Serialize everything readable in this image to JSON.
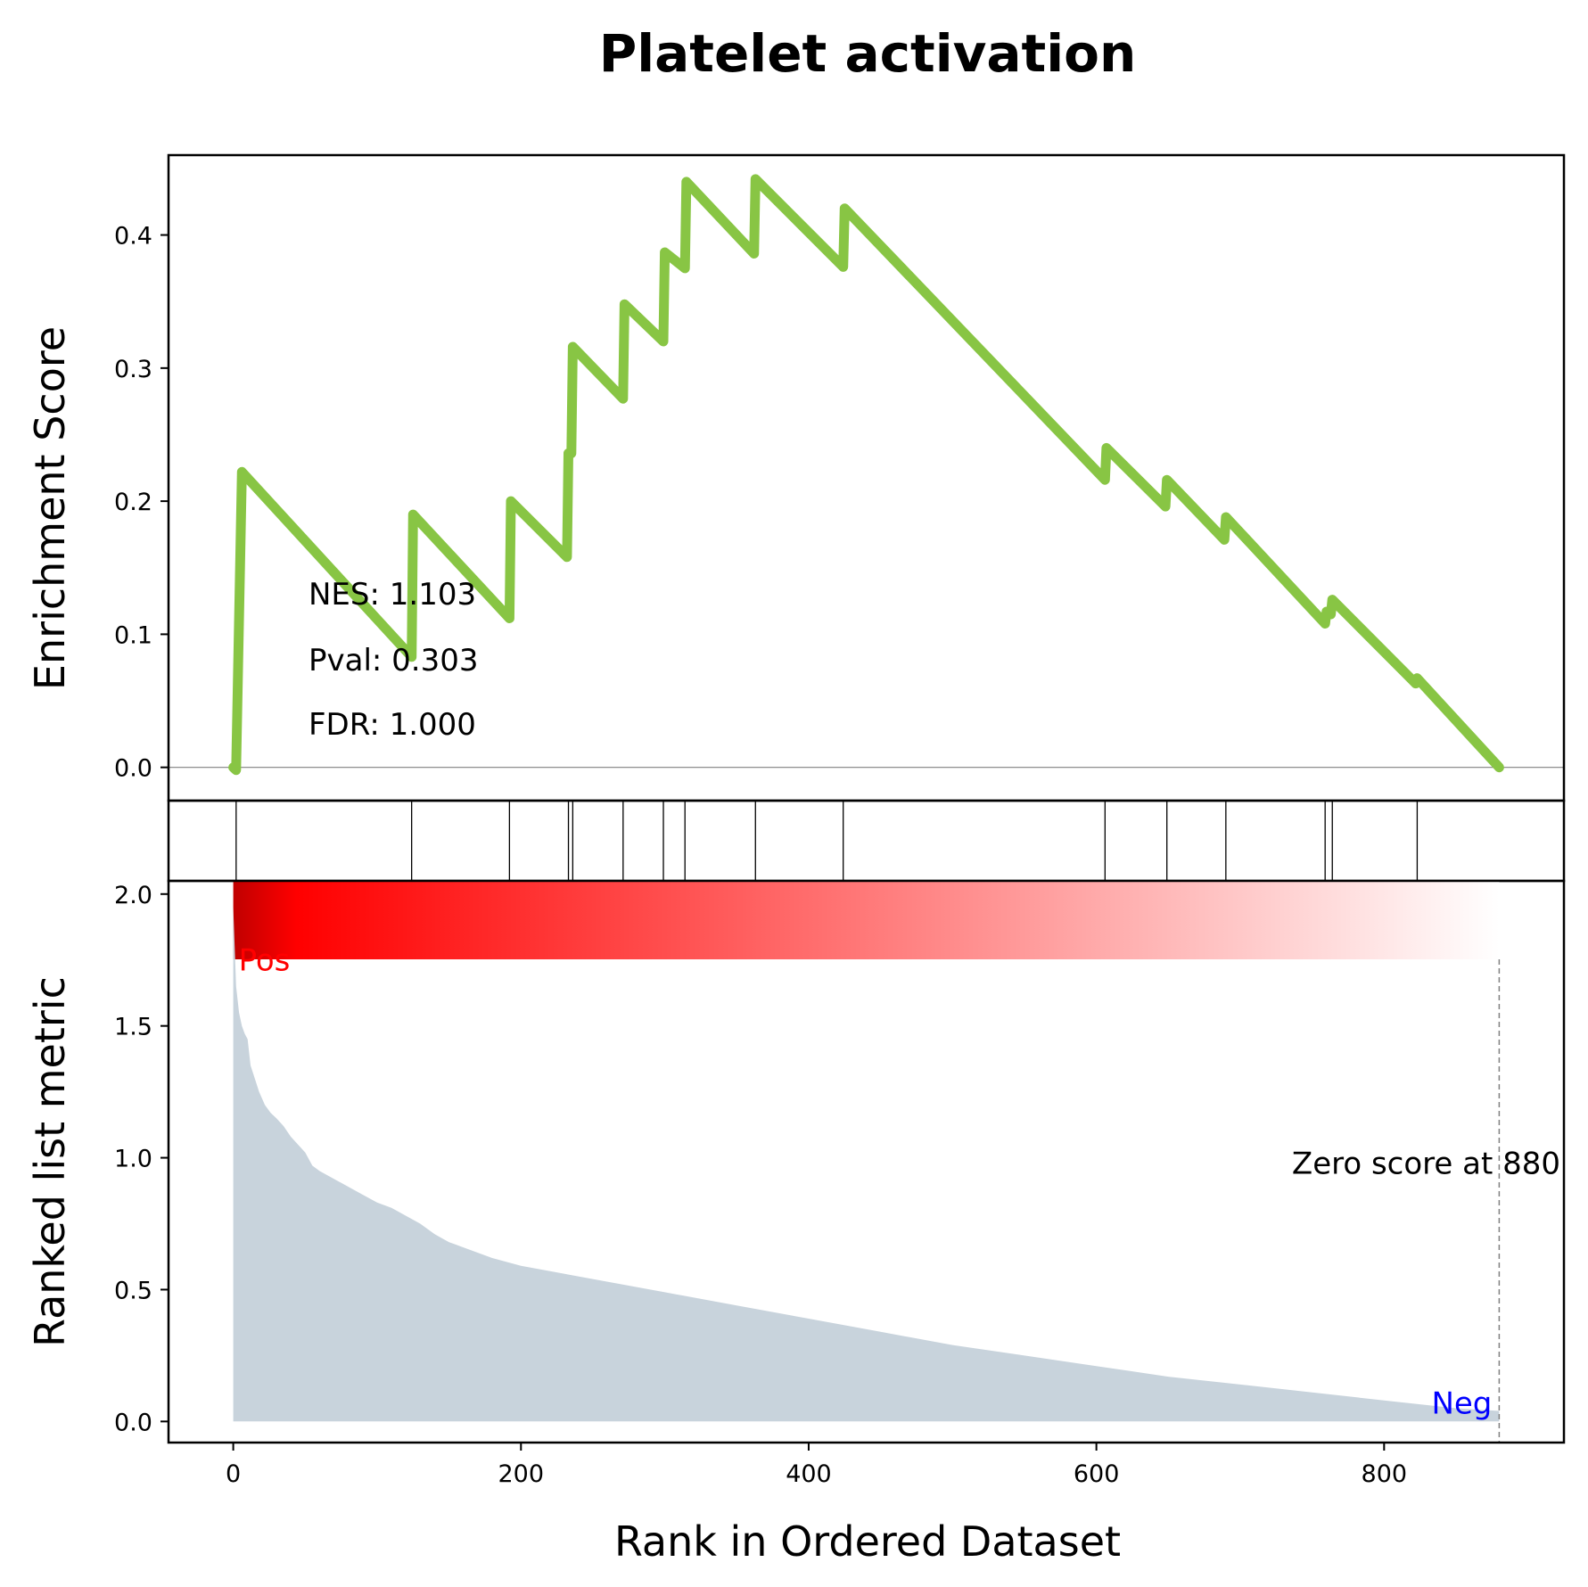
{
  "chart_data": {
    "type": "line",
    "title": "Platelet activation",
    "xlabel": "Rank in Ordered Dataset",
    "xlim": [
      -45,
      925
    ],
    "xticks": [
      0,
      200,
      400,
      600,
      800
    ],
    "es_panel": {
      "ylabel": "Enrichment Score",
      "ylim": [
        -0.025,
        0.46
      ],
      "yticks": [
        "0.0",
        "0.1",
        "0.2",
        "0.3",
        "0.4"
      ],
      "line_color": "#88c544",
      "zero_line": true,
      "series": [
        {
          "x": [
            0,
            2,
            6,
            124,
            125,
            192,
            193,
            232,
            233,
            235,
            236,
            271,
            272,
            299,
            300,
            314,
            315,
            362,
            363,
            424,
            425,
            606,
            607,
            648,
            649,
            689,
            690,
            759,
            760,
            763,
            764,
            822,
            823,
            880
          ],
          "y": [
            0.0,
            -0.002,
            0.222,
            0.083,
            0.19,
            0.112,
            0.2,
            0.158,
            0.236,
            0.236,
            0.316,
            0.277,
            0.348,
            0.32,
            0.387,
            0.375,
            0.44,
            0.386,
            0.442,
            0.376,
            0.42,
            0.216,
            0.24,
            0.196,
            0.216,
            0.171,
            0.188,
            0.108,
            0.117,
            0.115,
            0.126,
            0.063,
            0.067,
            0.0
          ]
        }
      ],
      "stats": {
        "nes": "NES: 1.103",
        "pval": "Pval: 0.303",
        "fdr": "FDR: 1.000"
      }
    },
    "hits_panel": {
      "hit_ranks": [
        2,
        124,
        192,
        233,
        236,
        271,
        299,
        314,
        363,
        424,
        606,
        649,
        690,
        759,
        764,
        823
      ]
    },
    "colorbar": {
      "colors": [
        "#c00000",
        "#ff0000",
        "#ffffff"
      ],
      "range": [
        0,
        880
      ]
    },
    "metric_panel": {
      "ylabel": "Ranked list metric",
      "ylim": [
        -0.08,
        2.05
      ],
      "yticks": [
        "0.0",
        "0.5",
        "1.0",
        "1.5",
        "2.0"
      ],
      "fill_color": "#c8d3dc",
      "x": [
        0,
        1,
        2,
        4,
        6,
        8,
        10,
        12,
        15,
        18,
        22,
        26,
        30,
        35,
        40,
        45,
        50,
        55,
        60,
        70,
        80,
        90,
        100,
        110,
        120,
        130,
        140,
        150,
        160,
        180,
        200,
        250,
        300,
        350,
        400,
        450,
        500,
        550,
        600,
        650,
        700,
        750,
        800,
        850,
        880
      ],
      "y": [
        1.95,
        1.8,
        1.65,
        1.55,
        1.5,
        1.47,
        1.45,
        1.35,
        1.3,
        1.25,
        1.2,
        1.17,
        1.15,
        1.12,
        1.08,
        1.05,
        1.02,
        0.97,
        0.95,
        0.92,
        0.89,
        0.86,
        0.83,
        0.81,
        0.78,
        0.75,
        0.71,
        0.68,
        0.66,
        0.62,
        0.59,
        0.54,
        0.49,
        0.44,
        0.39,
        0.34,
        0.29,
        0.25,
        0.21,
        0.17,
        0.14,
        0.11,
        0.08,
        0.05,
        0.04
      ],
      "pos_label": "Pos",
      "neg_label": "Neg",
      "pos_color": "#ff0000",
      "neg_color": "#0000ff",
      "zero_score_label": "Zero score at 880",
      "zero_score_rank": 880
    }
  }
}
